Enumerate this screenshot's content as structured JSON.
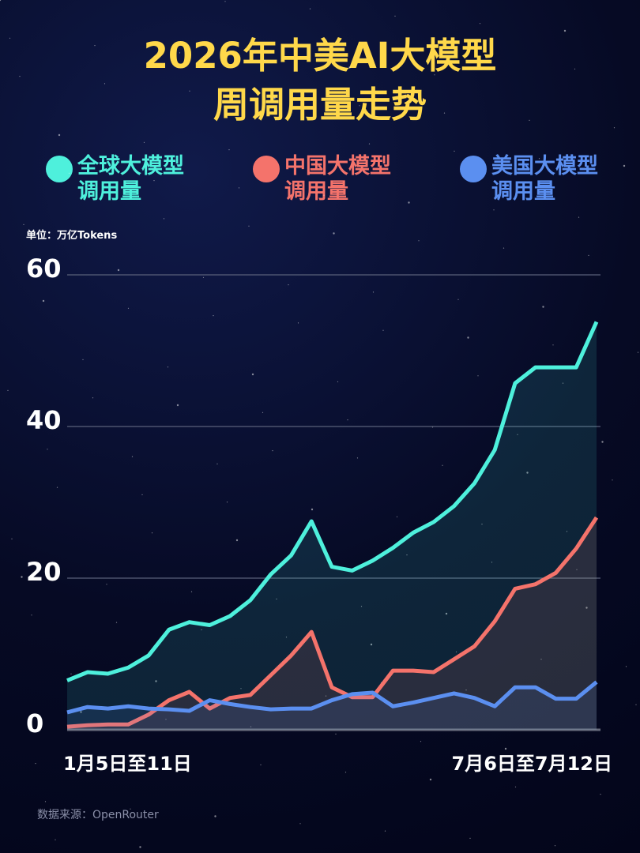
{
  "chart_data": {
    "type": "line",
    "title": "2026年中美AI大模型周调用量走势",
    "unit": "单位：万亿Tokens",
    "source": "数据来源：OpenRouter",
    "categories": [
      "1月5日至11日",
      null,
      null,
      null,
      null,
      null,
      null,
      null,
      null,
      null,
      null,
      null,
      null,
      null,
      null,
      null,
      null,
      null,
      null,
      null,
      null,
      null,
      null,
      null,
      null,
      null,
      "7月6日至7月12日"
    ],
    "series": [
      {
        "name": "全球大模型调用量",
        "color": "#4ef0dc",
        "values": [
          6.5,
          7.6,
          7.4,
          8.2,
          9.8,
          13.2,
          14.2,
          13.8,
          15,
          17.1,
          20.5,
          23,
          27.5,
          21.5,
          21,
          22.3,
          24,
          26,
          27.4,
          29.5,
          32.5,
          36.9,
          45.7,
          47.8,
          47.8,
          47.8,
          53.8
        ]
      },
      {
        "name": "中国大模型调用量",
        "color": "#f4736b",
        "values": [
          0.4,
          0.6,
          0.7,
          0.7,
          2,
          3.9,
          5,
          2.8,
          4.2,
          4.6,
          7.2,
          9.8,
          12.9,
          5.6,
          4.3,
          4.3,
          7.8,
          7.8,
          7.6,
          9.3,
          11,
          14.3,
          18.6,
          19.2,
          20.7,
          23.9,
          28
        ]
      },
      {
        "name": "美国大模型调用量",
        "color": "#5b8ff0",
        "values": [
          2.3,
          3,
          2.8,
          3.1,
          2.8,
          2.7,
          2.5,
          3.9,
          3.4,
          3,
          2.7,
          2.8,
          2.8,
          3.9,
          4.7,
          4.9,
          3.1,
          3.6,
          4.2,
          4.8,
          4.2,
          3.1,
          5.6,
          5.6,
          4.1,
          4.1,
          6.3
        ]
      }
    ],
    "ylim": [
      0,
      60
    ],
    "yticks": [
      0,
      20,
      40,
      60
    ],
    "grid": true,
    "area": true
  }
}
